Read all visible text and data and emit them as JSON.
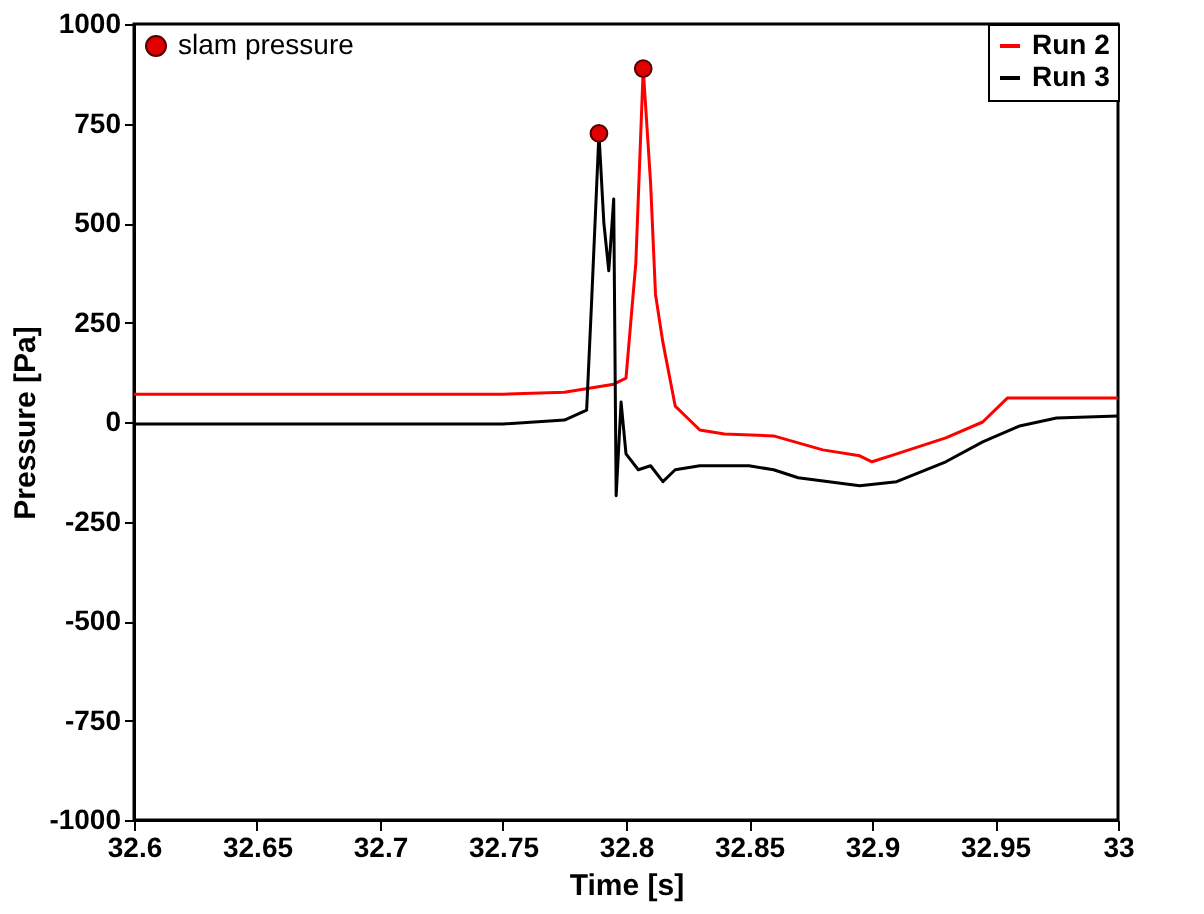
{
  "chart_data": {
    "type": "line",
    "xlabel": "Time [s]",
    "ylabel": "Pressure [Pa]",
    "xlim": [
      32.6,
      33
    ],
    "xticks": [
      32.6,
      32.65,
      32.7,
      32.75,
      32.8,
      32.85,
      32.9,
      32.95,
      33
    ],
    "ylim": [
      -1000,
      1000
    ],
    "yticks": [
      -1000,
      -750,
      -500,
      -250,
      0,
      250,
      500,
      750,
      1000
    ],
    "grid": false,
    "legend": "top right",
    "line_style": "solid",
    "series": [
      {
        "name": "Run 2",
        "color": "#ff0000",
        "x": [
          32.6,
          32.65,
          32.7,
          32.75,
          32.775,
          32.785,
          32.795,
          32.8,
          32.804,
          32.807,
          32.81,
          32.812,
          32.815,
          32.82,
          32.825,
          32.83,
          32.84,
          32.86,
          32.88,
          32.895,
          32.9,
          32.91,
          32.93,
          32.945,
          32.955,
          33
        ],
        "values": [
          70,
          70,
          70,
          70,
          75,
          85,
          95,
          110,
          400,
          888,
          600,
          320,
          200,
          40,
          10,
          -20,
          -30,
          -35,
          -70,
          -85,
          -100,
          -80,
          -40,
          0,
          60,
          60
        ]
      },
      {
        "name": "Run 3",
        "color": "#000000",
        "x": [
          32.6,
          32.65,
          32.7,
          32.75,
          32.775,
          32.784,
          32.786,
          32.789,
          32.791,
          32.793,
          32.795,
          32.796,
          32.798,
          32.8,
          32.805,
          32.81,
          32.815,
          32.82,
          32.83,
          32.85,
          32.86,
          32.87,
          32.895,
          32.91,
          32.93,
          32.945,
          32.96,
          32.975,
          33
        ],
        "values": [
          -5,
          -5,
          -5,
          -5,
          5,
          30,
          300,
          725,
          500,
          380,
          560,
          -185,
          50,
          -80,
          -120,
          -110,
          -150,
          -120,
          -110,
          -110,
          -120,
          -140,
          -160,
          -150,
          -100,
          -50,
          -10,
          10,
          15
        ]
      },
      {
        "name": "slam pressure",
        "color": "#e00000",
        "type": "scatter",
        "marker": "circle",
        "x": [
          32.789,
          32.807
        ],
        "values": [
          725,
          888
        ]
      }
    ]
  }
}
